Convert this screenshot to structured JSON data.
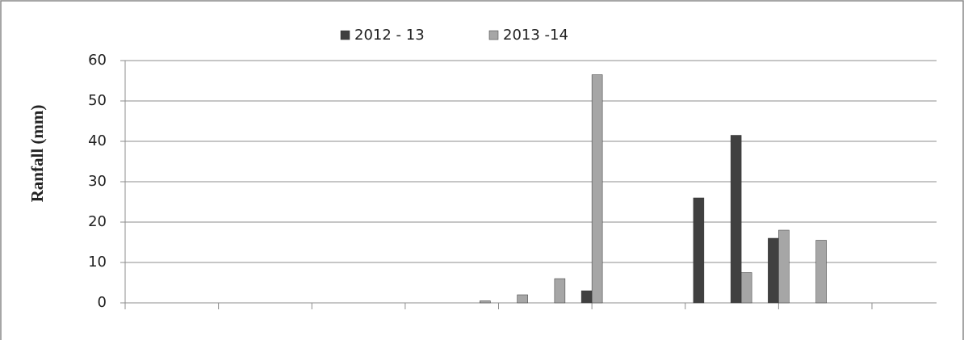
{
  "chart_data": {
    "type": "bar",
    "y_label": "Ranfall (mm)",
    "categories": [
      null,
      null,
      null,
      null,
      null,
      null,
      null,
      null,
      null,
      null,
      null,
      null,
      null,
      null,
      null,
      null,
      null,
      null,
      null,
      null
    ],
    "series": [
      {
        "name": "2012 - 13",
        "color": "#404040",
        "values": [
          0,
          0,
          0,
          0,
          0,
          0,
          0,
          0,
          0,
          0,
          0,
          0,
          3,
          0,
          0,
          26,
          41.5,
          16,
          0,
          0
        ]
      },
      {
        "name": "2013 -14",
        "color": "#a6a6a6",
        "values": [
          0,
          0,
          0,
          0,
          0,
          0,
          0,
          0,
          0,
          0.5,
          2,
          6,
          56.5,
          0,
          0,
          0,
          7.5,
          18,
          15.5,
          0
        ]
      }
    ],
    "ylim": [
      0,
      60
    ],
    "yticks": [
      0,
      10,
      20,
      30,
      40,
      50,
      60
    ],
    "grid": true
  }
}
